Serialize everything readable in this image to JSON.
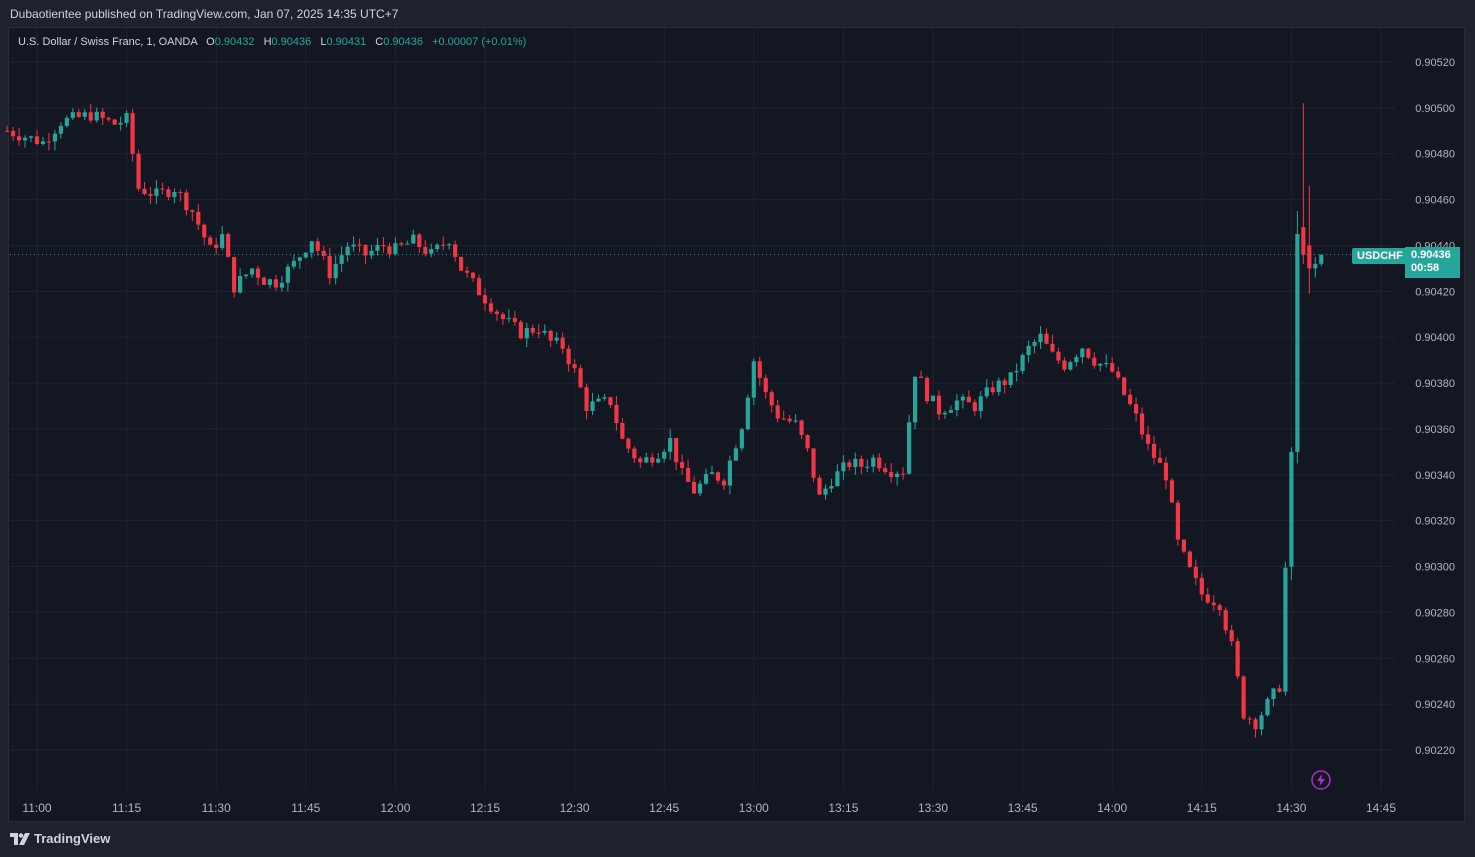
{
  "header": {
    "published": "Dubaotientee published on TradingView.com, Jan 07, 2025 14:35 UTC+7"
  },
  "legend": {
    "symbol": "U.S. Dollar / Swiss Franc, 1, OANDA",
    "o_label": "O",
    "o_value": "0.90432",
    "h_label": "H",
    "h_value": "0.90436",
    "l_label": "L",
    "l_value": "0.90431",
    "c_label": "C",
    "c_value": "0.90436",
    "change": "+0.00007 (+0.01%)"
  },
  "price_tag": {
    "symbol": "USDCHF",
    "price": "0.90436",
    "countdown": "00:58"
  },
  "footer": {
    "brand": "TradingView"
  },
  "icons": {
    "flash": "flash-icon",
    "logo": "tradingview-logo-icon"
  },
  "colors": {
    "up": "#26a69a",
    "down": "#f23645",
    "background": "#131722",
    "grid": "#1f2430",
    "text": "#b2b5be"
  },
  "chart_data": {
    "type": "candlestick",
    "interval_minutes": 1,
    "start_time": "10:55",
    "y_ticks": [
      "0.90520",
      "0.90500",
      "0.90480",
      "0.90460",
      "0.90440",
      "0.90420",
      "0.90400",
      "0.90380",
      "0.90360",
      "0.90340",
      "0.90320",
      "0.90300",
      "0.90280",
      "0.90260",
      "0.90240",
      "0.90220"
    ],
    "x_ticks": [
      "11:00",
      "11:15",
      "11:30",
      "11:45",
      "12:00",
      "12:15",
      "12:30",
      "12:45",
      "13:00",
      "13:15",
      "13:30",
      "13:45",
      "14:00",
      "14:15",
      "14:30",
      "14:45"
    ],
    "ylim": [
      0.90208,
      0.90538
    ],
    "last_price": 0.90436,
    "close_path": [
      [
        "10:55",
        0.9049
      ],
      [
        "11:01",
        0.90485
      ],
      [
        "11:04",
        0.90494
      ],
      [
        "11:09",
        0.90497
      ],
      [
        "11:13",
        0.90493
      ],
      [
        "11:15",
        0.90495
      ],
      [
        "11:17",
        0.90465
      ],
      [
        "11:20",
        0.90462
      ],
      [
        "11:23",
        0.90465
      ],
      [
        "11:26",
        0.90455
      ],
      [
        "11:29",
        0.90438
      ],
      [
        "11:31",
        0.90444
      ],
      [
        "11:33",
        0.90422
      ],
      [
        "11:36",
        0.9043
      ],
      [
        "11:38",
        0.90425
      ],
      [
        "11:40",
        0.90424
      ],
      [
        "11:43",
        0.90432
      ],
      [
        "11:46",
        0.90443
      ],
      [
        "11:49",
        0.90428
      ],
      [
        "11:52",
        0.9044
      ],
      [
        "11:55",
        0.90436
      ],
      [
        "11:58",
        0.9044
      ],
      [
        "12:00",
        0.90438
      ],
      [
        "12:03",
        0.90442
      ],
      [
        "12:06",
        0.90436
      ],
      [
        "12:09",
        0.90443
      ],
      [
        "12:11",
        0.9043
      ],
      [
        "12:14",
        0.9042
      ],
      [
        "12:18",
        0.90408
      ],
      [
        "12:21",
        0.90402
      ],
      [
        "12:24",
        0.90404
      ],
      [
        "12:26",
        0.90398
      ],
      [
        "12:28",
        0.90396
      ],
      [
        "12:30",
        0.90385
      ],
      [
        "12:32",
        0.9037
      ],
      [
        "12:36",
        0.90372
      ],
      [
        "12:38",
        0.90355
      ],
      [
        "12:41",
        0.90345
      ],
      [
        "12:44",
        0.9035
      ],
      [
        "12:46",
        0.90355
      ],
      [
        "12:48",
        0.9034
      ],
      [
        "12:50",
        0.90333
      ],
      [
        "12:53",
        0.9034
      ],
      [
        "12:55",
        0.90338
      ],
      [
        "12:58",
        0.90362
      ],
      [
        "13:00",
        0.9039
      ],
      [
        "13:02",
        0.90375
      ],
      [
        "13:04",
        0.90366
      ],
      [
        "13:07",
        0.90362
      ],
      [
        "13:09",
        0.9035
      ],
      [
        "13:11",
        0.9033
      ],
      [
        "13:13",
        0.90338
      ],
      [
        "13:16",
        0.90345
      ],
      [
        "13:18",
        0.90344
      ],
      [
        "13:20",
        0.90347
      ],
      [
        "13:23",
        0.90342
      ],
      [
        "13:25",
        0.90342
      ],
      [
        "13:27",
        0.90385
      ],
      [
        "13:29",
        0.90375
      ],
      [
        "13:31",
        0.90368
      ],
      [
        "13:34",
        0.90372
      ],
      [
        "13:37",
        0.9037
      ],
      [
        "13:40",
        0.90378
      ],
      [
        "13:43",
        0.90382
      ],
      [
        "13:46",
        0.90395
      ],
      [
        "13:48",
        0.904
      ],
      [
        "13:50",
        0.90392
      ],
      [
        "13:52",
        0.90388
      ],
      [
        "13:55",
        0.90396
      ],
      [
        "13:57",
        0.9039
      ],
      [
        "14:00",
        0.90385
      ],
      [
        "14:02",
        0.90375
      ],
      [
        "14:04",
        0.90365
      ],
      [
        "14:06",
        0.90352
      ],
      [
        "14:09",
        0.9034
      ],
      [
        "14:11",
        0.9031
      ],
      [
        "14:13",
        0.90298
      ],
      [
        "14:15",
        0.90288
      ],
      [
        "14:18",
        0.90284
      ],
      [
        "14:20",
        0.90265
      ],
      [
        "14:22",
        0.90236
      ],
      [
        "14:24",
        0.90232
      ],
      [
        "14:26",
        0.9024
      ],
      [
        "14:28",
        0.90248
      ],
      [
        "14:30",
        0.9035
      ],
      [
        "14:31",
        0.90435
      ],
      [
        "14:32",
        0.9044
      ],
      [
        "14:33",
        0.9043
      ],
      [
        "14:34",
        0.90432
      ],
      [
        "14:35",
        0.90436
      ]
    ]
  }
}
